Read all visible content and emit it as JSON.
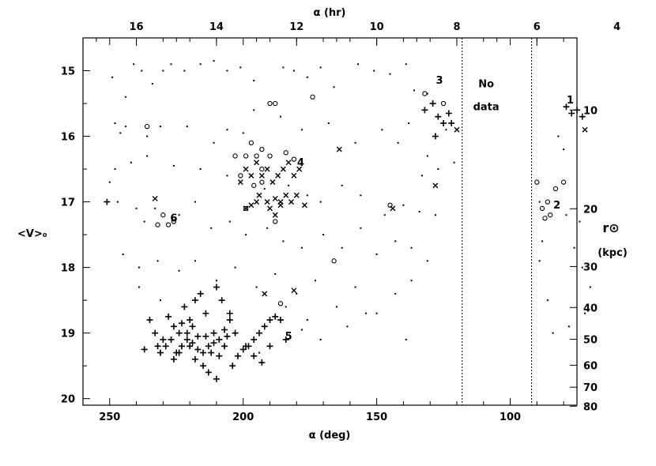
{
  "chart_data": {
    "type": "scatter",
    "axes": {
      "bottom": {
        "label": "α (deg)",
        "range": [
          260,
          75
        ],
        "ticks": [
          250,
          200,
          150,
          100
        ]
      },
      "top": {
        "label": "α (hr)",
        "ticks": [
          16,
          14,
          12,
          10,
          8,
          6,
          4
        ]
      },
      "left": {
        "label": "<V>₀",
        "range": [
          14.5,
          20.1
        ],
        "ticks": [
          15,
          16,
          17,
          18,
          19,
          20
        ],
        "inverted": true
      },
      "right": {
        "label": "r⊙",
        "sublabel": "(kpc)",
        "ticks": [
          10,
          20,
          30,
          40,
          50,
          60,
          70,
          80
        ]
      }
    },
    "vlines": [
      118,
      92
    ],
    "annotations": [
      {
        "text": "No",
        "x": 109,
        "y": 15.25
      },
      {
        "text": "data",
        "x": 109,
        "y": 15.6
      },
      {
        "text": "1",
        "x": 77.5,
        "y": 15.5
      },
      {
        "text": "2",
        "x": 82.5,
        "y": 17.1
      },
      {
        "text": "3",
        "x": 126.5,
        "y": 15.2
      },
      {
        "text": "4",
        "x": 178.5,
        "y": 16.45
      },
      {
        "text": "5",
        "x": 183,
        "y": 19.1
      },
      {
        "text": "6",
        "x": 226,
        "y": 17.3
      }
    ],
    "series": [
      {
        "marker": "dot",
        "points": [
          [
            249,
            15.1
          ],
          [
            244,
            15.4
          ],
          [
            241,
            14.9
          ],
          [
            238,
            15.0
          ],
          [
            234,
            15.2
          ],
          [
            230,
            15.0
          ],
          [
            227,
            14.9
          ],
          [
            222,
            15.0
          ],
          [
            216,
            14.9
          ],
          [
            211,
            14.85
          ],
          [
            206,
            15.0
          ],
          [
            201,
            14.95
          ],
          [
            196,
            15.15
          ],
          [
            185,
            14.95
          ],
          [
            181,
            15.0
          ],
          [
            176,
            15.1
          ],
          [
            171,
            14.95
          ],
          [
            166,
            15.25
          ],
          [
            157,
            14.9
          ],
          [
            151,
            15.0
          ],
          [
            145,
            15.05
          ],
          [
            139,
            14.9
          ],
          [
            136,
            15.3
          ],
          [
            131,
            15.35
          ],
          [
            248,
            15.8
          ],
          [
            246,
            15.95
          ],
          [
            244,
            15.85
          ],
          [
            236,
            16.0
          ],
          [
            231,
            15.85
          ],
          [
            221,
            15.85
          ],
          [
            211,
            16.1
          ],
          [
            206,
            15.9
          ],
          [
            200,
            15.95
          ],
          [
            196,
            15.6
          ],
          [
            186,
            15.7
          ],
          [
            178,
            15.9
          ],
          [
            168,
            15.8
          ],
          [
            158,
            16.1
          ],
          [
            148,
            15.9
          ],
          [
            142,
            16.1
          ],
          [
            138,
            15.8
          ],
          [
            248,
            16.5
          ],
          [
            242,
            16.4
          ],
          [
            236,
            16.3
          ],
          [
            226,
            16.45
          ],
          [
            216,
            16.5
          ],
          [
            206,
            16.6
          ],
          [
            201,
            16.7
          ],
          [
            192,
            16.8
          ],
          [
            183,
            16.75
          ],
          [
            176,
            16.9
          ],
          [
            171,
            17.0
          ],
          [
            163,
            16.75
          ],
          [
            156,
            16.9
          ],
          [
            147,
            17.2
          ],
          [
            140,
            17.05
          ],
          [
            134,
            17.15
          ],
          [
            128,
            17.2
          ],
          [
            250,
            16.7
          ],
          [
            247,
            17.0
          ],
          [
            240,
            17.1
          ],
          [
            237,
            17.3
          ],
          [
            233,
            17.1
          ],
          [
            224,
            17.2
          ],
          [
            218,
            17.0
          ],
          [
            212,
            17.4
          ],
          [
            205,
            17.3
          ],
          [
            199,
            17.5
          ],
          [
            191,
            17.4
          ],
          [
            185,
            17.6
          ],
          [
            178,
            17.7
          ],
          [
            170,
            17.5
          ],
          [
            163,
            17.7
          ],
          [
            156,
            17.4
          ],
          [
            150,
            17.8
          ],
          [
            143,
            17.6
          ],
          [
            137,
            17.7
          ],
          [
            131,
            17.9
          ],
          [
            245,
            17.8
          ],
          [
            239,
            18.0
          ],
          [
            232,
            17.9
          ],
          [
            224,
            18.05
          ],
          [
            218,
            17.9
          ],
          [
            210,
            18.2
          ],
          [
            203,
            18.0
          ],
          [
            195,
            18.3
          ],
          [
            188,
            18.1
          ],
          [
            180,
            18.4
          ],
          [
            173,
            18.2
          ],
          [
            165,
            18.6
          ],
          [
            158,
            18.3
          ],
          [
            150,
            18.7
          ],
          [
            143,
            18.4
          ],
          [
            137,
            18.2
          ],
          [
            239,
            18.3
          ],
          [
            231,
            18.5
          ],
          [
            176,
            18.8
          ],
          [
            171,
            19.1
          ],
          [
            161,
            18.9
          ],
          [
            154,
            18.7
          ],
          [
            139,
            19.1
          ],
          [
            184,
            18.6
          ],
          [
            178,
            18.95
          ],
          [
            194,
            19.3
          ],
          [
            89,
            17.0
          ],
          [
            88,
            17.6
          ],
          [
            89,
            17.9
          ],
          [
            86,
            18.5
          ],
          [
            84,
            19.0
          ],
          [
            79,
            17.2
          ],
          [
            74,
            17.3
          ],
          [
            76,
            17.7
          ],
          [
            73,
            18.0
          ],
          [
            70,
            18.3
          ],
          [
            72,
            18.7
          ],
          [
            78,
            18.9
          ],
          [
            80,
            16.2
          ],
          [
            82,
            16.0
          ],
          [
            124,
            15.9
          ],
          [
            127,
            16.5
          ],
          [
            121,
            16.4
          ],
          [
            131,
            16.3
          ],
          [
            133,
            16.6
          ]
        ]
      },
      {
        "marker": "plus",
        "points": [
          [
            251,
            17.0
          ],
          [
            132,
            15.6
          ],
          [
            129,
            15.5
          ],
          [
            127,
            15.7
          ],
          [
            125,
            15.8
          ],
          [
            123,
            15.65
          ],
          [
            122,
            15.8
          ],
          [
            128,
            16.0
          ],
          [
            79,
            15.55
          ],
          [
            77,
            15.65
          ],
          [
            75,
            15.6
          ],
          [
            73,
            15.7
          ],
          [
            186,
            18.8
          ],
          [
            188,
            18.75
          ],
          [
            190,
            18.8
          ],
          [
            192,
            18.9
          ],
          [
            194,
            19.0
          ],
          [
            196,
            19.1
          ],
          [
            199,
            19.2
          ],
          [
            203,
            19.0
          ],
          [
            205,
            18.8
          ],
          [
            207,
            18.95
          ],
          [
            209,
            19.1
          ],
          [
            211,
            19.0
          ],
          [
            213,
            19.2
          ],
          [
            215,
            19.3
          ],
          [
            217,
            19.05
          ],
          [
            219,
            18.9
          ],
          [
            221,
            19.1
          ],
          [
            223,
            19.2
          ],
          [
            225,
            19.3
          ],
          [
            227,
            19.1
          ],
          [
            229,
            19.2
          ],
          [
            231,
            19.3
          ],
          [
            233,
            19.0
          ],
          [
            235,
            18.8
          ],
          [
            237,
            19.25
          ],
          [
            222,
            18.6
          ],
          [
            218,
            18.5
          ],
          [
            214,
            18.7
          ],
          [
            210,
            18.3
          ],
          [
            208,
            18.5
          ],
          [
            205,
            18.7
          ],
          [
            210,
            19.7
          ],
          [
            215,
            19.5
          ],
          [
            218,
            19.4
          ],
          [
            220,
            19.2
          ],
          [
            224,
            19.0
          ],
          [
            226,
            18.9
          ],
          [
            216,
            18.4
          ],
          [
            212,
            19.3
          ],
          [
            200,
            19.25
          ],
          [
            196,
            19.35
          ],
          [
            193,
            19.45
          ],
          [
            230,
            19.1
          ],
          [
            228,
            18.75
          ],
          [
            219,
            19.15
          ],
          [
            214,
            19.05
          ],
          [
            206,
            19.05
          ],
          [
            202,
            19.35
          ],
          [
            198,
            19.2
          ],
          [
            190,
            19.2
          ],
          [
            184,
            19.1
          ],
          [
            204,
            19.5
          ],
          [
            213,
            19.6
          ],
          [
            224,
            19.3
          ],
          [
            232,
            19.2
          ],
          [
            226,
            19.4
          ],
          [
            220,
            18.8
          ],
          [
            217,
            19.25
          ],
          [
            211,
            19.15
          ],
          [
            209,
            19.35
          ],
          [
            207,
            19.2
          ],
          [
            221,
            19.0
          ],
          [
            223,
            18.85
          ]
        ]
      },
      {
        "marker": "x",
        "points": [
          [
            233,
            16.95
          ],
          [
            201,
            16.7
          ],
          [
            199,
            16.5
          ],
          [
            197,
            16.6
          ],
          [
            195,
            16.4
          ],
          [
            193,
            16.6
          ],
          [
            191,
            16.5
          ],
          [
            189,
            16.7
          ],
          [
            187,
            16.6
          ],
          [
            185,
            16.5
          ],
          [
            183,
            16.4
          ],
          [
            181,
            16.6
          ],
          [
            179,
            16.5
          ],
          [
            194,
            16.9
          ],
          [
            191,
            17.0
          ],
          [
            188,
            16.95
          ],
          [
            186,
            17.05
          ],
          [
            184,
            16.9
          ],
          [
            182,
            17.0
          ],
          [
            180,
            16.9
          ],
          [
            177,
            17.05
          ],
          [
            197,
            17.05
          ],
          [
            195,
            17.0
          ],
          [
            199,
            17.1
          ],
          [
            190,
            17.1
          ],
          [
            188,
            17.2
          ],
          [
            164,
            16.2
          ],
          [
            144,
            17.1
          ],
          [
            128,
            16.75
          ],
          [
            186,
            17.0
          ],
          [
            120,
            15.9
          ],
          [
            72,
            15.9
          ],
          [
            181,
            18.35
          ],
          [
            192,
            18.4
          ]
        ]
      },
      {
        "marker": "circle",
        "points": [
          [
            236,
            15.85
          ],
          [
            190,
            15.5
          ],
          [
            188,
            15.5
          ],
          [
            174,
            15.4
          ],
          [
            132,
            15.35
          ],
          [
            125,
            15.5
          ],
          [
            203,
            16.3
          ],
          [
            199,
            16.3
          ],
          [
            195,
            16.3
          ],
          [
            193,
            16.2
          ],
          [
            190,
            16.3
          ],
          [
            193,
            16.5
          ],
          [
            197,
            16.1
          ],
          [
            201,
            16.6
          ],
          [
            193,
            16.7
          ],
          [
            181,
            16.35
          ],
          [
            196,
            16.75
          ],
          [
            184,
            16.25
          ],
          [
            199,
            17.1
          ],
          [
            188,
            17.3
          ],
          [
            232,
            17.35
          ],
          [
            230,
            17.2
          ],
          [
            228,
            17.35
          ],
          [
            226,
            17.3
          ],
          [
            145,
            17.05
          ],
          [
            166,
            17.9
          ],
          [
            186,
            18.55
          ],
          [
            90,
            16.7
          ],
          [
            80,
            16.7
          ],
          [
            83,
            16.8
          ],
          [
            86,
            17.0
          ],
          [
            85,
            17.2
          ],
          [
            88,
            17.1
          ],
          [
            87,
            17.25
          ]
        ]
      }
    ]
  }
}
